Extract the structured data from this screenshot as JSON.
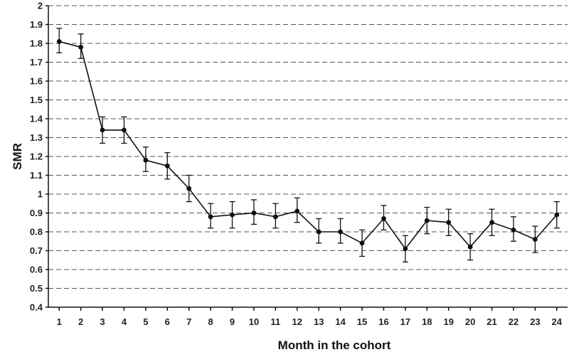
{
  "chart_data": {
    "type": "line",
    "title": "",
    "xlabel": "Month in the cohort",
    "ylabel": "SMR",
    "ylim": [
      0.4,
      2
    ],
    "y_ticks": [
      "0.4",
      "0.5",
      "0.6",
      "0.7",
      "0.8",
      "0.9",
      "1",
      "1.1",
      "1.2",
      "1.3",
      "1.4",
      "1.5",
      "1.6",
      "1.7",
      "1.8",
      "1.9",
      "2"
    ],
    "categories": [
      "1",
      "2",
      "3",
      "4",
      "5",
      "6",
      "7",
      "8",
      "9",
      "10",
      "11",
      "12",
      "13",
      "14",
      "15",
      "16",
      "17",
      "18",
      "19",
      "20",
      "21",
      "22",
      "23",
      "24"
    ],
    "series": [
      {
        "values": [
          1.81,
          1.78,
          1.34,
          1.34,
          1.18,
          1.15,
          1.03,
          0.88,
          0.89,
          0.9,
          0.88,
          0.91,
          0.8,
          0.8,
          0.74,
          0.87,
          0.71,
          0.86,
          0.85,
          0.72,
          0.85,
          0.81,
          0.76,
          0.89
        ],
        "lower": [
          1.75,
          1.72,
          1.27,
          1.27,
          1.12,
          1.08,
          0.96,
          0.82,
          0.82,
          0.84,
          0.82,
          0.85,
          0.74,
          0.74,
          0.67,
          0.81,
          0.64,
          0.79,
          0.78,
          0.65,
          0.78,
          0.75,
          0.69,
          0.82
        ],
        "upper": [
          1.88,
          1.85,
          1.41,
          1.41,
          1.25,
          1.22,
          1.1,
          0.95,
          0.96,
          0.97,
          0.95,
          0.98,
          0.87,
          0.87,
          0.81,
          0.94,
          0.78,
          0.93,
          0.92,
          0.79,
          0.92,
          0.88,
          0.83,
          0.96
        ]
      }
    ],
    "grid": true,
    "legend": "none"
  }
}
